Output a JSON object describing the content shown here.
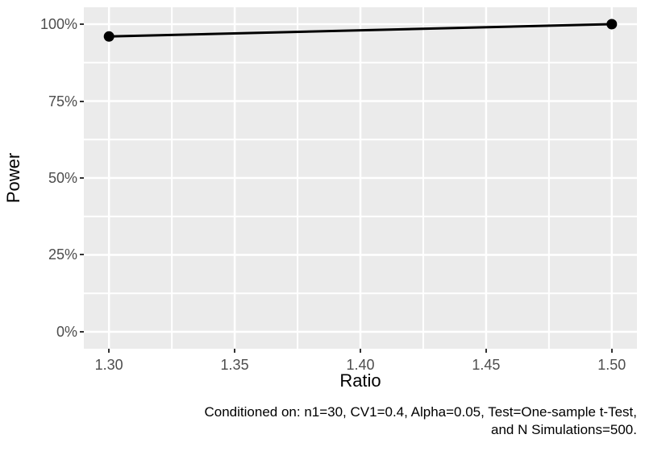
{
  "figure": {
    "background": "#FFFFFF"
  },
  "chart_data": {
    "type": "line",
    "title": "",
    "xlabel": "Ratio",
    "ylabel": "Power",
    "x": [
      1.3,
      1.5
    ],
    "series": [
      {
        "name": "Power",
        "values": [
          96,
          100
        ],
        "color": "#000000"
      }
    ],
    "y_unit": "%",
    "xlim": [
      1.29,
      1.51
    ],
    "ylim": [
      -5.5,
      105.5
    ],
    "x_ticks": {
      "values": [
        1.3,
        1.35,
        1.4,
        1.45,
        1.5
      ],
      "labels": [
        "1.30",
        "1.35",
        "1.40",
        "1.45",
        "1.50"
      ],
      "minor": [
        1.325,
        1.375,
        1.425,
        1.475
      ]
    },
    "y_ticks": {
      "values": [
        0,
        25,
        50,
        75,
        100
      ],
      "labels": [
        "0%",
        "25%",
        "50%",
        "75%",
        "100%"
      ],
      "minor": [
        12.5,
        37.5,
        62.5,
        87.5
      ]
    },
    "grid": {
      "major": true,
      "minor": true
    },
    "legend": "none",
    "style": {
      "panel_bg": "#EBEBEB",
      "grid_color": "#FFFFFF",
      "major_grid_width": 2.5,
      "minor_grid_width": 2,
      "tick_mark_color": "#333333",
      "axis_text_color": "#4D4D4D",
      "axis_title_color": "#000000",
      "line_width": 3,
      "point_radius": 6.5
    }
  },
  "caption": {
    "line1": "Conditioned on: n1=30, CV1=0.4, Alpha=0.05, Test=One-sample t-Test,",
    "line2": "and N Simulations=500.",
    "color": "#000000"
  }
}
